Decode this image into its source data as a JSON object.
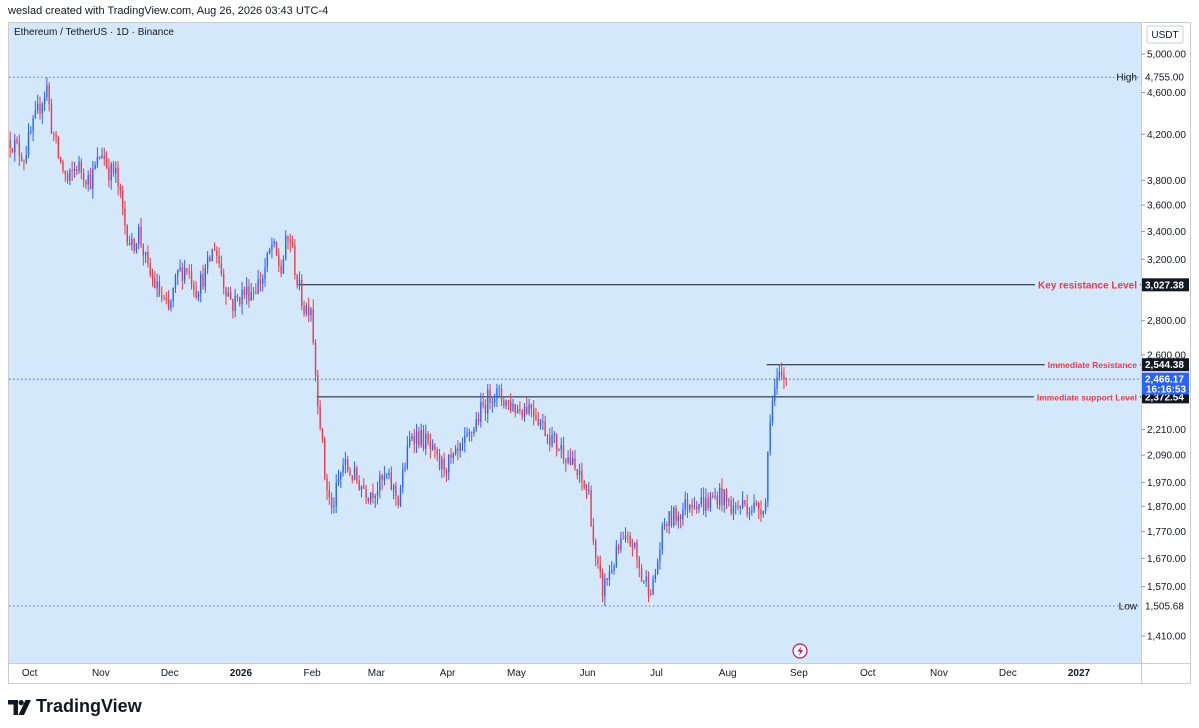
{
  "header": {
    "credit": "weslad created with TradingView.com, Aug 26, 2026 03:43 UTC-4"
  },
  "legend": {
    "symbol": "Ethereum / TetherUS · 1D · Binance"
  },
  "currency": "USDT",
  "footer": {
    "brand": "TradingView"
  },
  "colors": {
    "background": "#d4e8fb",
    "up": "#2962ff",
    "down": "#f23645",
    "annotation": "#f23645",
    "price_box": "#2962ff"
  },
  "chart_data": {
    "type": "candlestick",
    "title": "",
    "xlabel": "",
    "ylabel": "",
    "y_scale": "log",
    "ylim": [
      1330,
      5350
    ],
    "x_range": [
      "2025-09-22",
      "2027-01-28"
    ],
    "grid": false,
    "y_ticks": [
      "5,000.00",
      "4,600.00",
      "4,200.00",
      "3,800.00",
      "3,600.00",
      "3,400.00",
      "3,200.00",
      "2,800.00",
      "2,600.00",
      "2,210.00",
      "2,090.00",
      "1,970.00",
      "1,870.00",
      "1,770.00",
      "1,670.00",
      "1,570.00",
      "1,410.00"
    ],
    "x_ticks": [
      {
        "date": "2025-10-01",
        "label": "Oct"
      },
      {
        "date": "2025-11-01",
        "label": "Nov"
      },
      {
        "date": "2025-12-01",
        "label": "Dec"
      },
      {
        "date": "2026-01-01",
        "label": "2026"
      },
      {
        "date": "2026-02-01",
        "label": "Feb"
      },
      {
        "date": "2026-03-01",
        "label": "Mar"
      },
      {
        "date": "2026-04-01",
        "label": "Apr"
      },
      {
        "date": "2026-05-01",
        "label": "May"
      },
      {
        "date": "2026-06-01",
        "label": "Jun"
      },
      {
        "date": "2026-07-01",
        "label": "Jul"
      },
      {
        "date": "2026-08-01",
        "label": "Aug"
      },
      {
        "date": "2026-09-01",
        "label": "Sep"
      },
      {
        "date": "2026-10-01",
        "label": "Oct"
      },
      {
        "date": "2026-11-01",
        "label": "Nov"
      },
      {
        "date": "2026-12-01",
        "label": "Dec"
      },
      {
        "date": "2027-01-01",
        "label": "2027"
      }
    ],
    "start_date": "2025-09-22",
    "anchors": [
      [
        "2025-09-22",
        4150
      ],
      [
        "2025-09-28",
        4000
      ],
      [
        "2025-10-06",
        4540
      ],
      [
        "2025-10-08",
        4650
      ],
      [
        "2025-10-10",
        4280
      ],
      [
        "2025-10-13",
        4000
      ],
      [
        "2025-10-17",
        3780
      ],
      [
        "2025-10-21",
        3930
      ],
      [
        "2025-10-27",
        3800
      ],
      [
        "2025-11-01",
        4050
      ],
      [
        "2025-11-04",
        3880
      ],
      [
        "2025-11-07",
        3850
      ],
      [
        "2025-11-11",
        3450
      ],
      [
        "2025-11-14",
        3280
      ],
      [
        "2025-11-17",
        3400
      ],
      [
        "2025-11-21",
        3120
      ],
      [
        "2025-11-25",
        3000
      ],
      [
        "2025-11-30",
        2850
      ],
      [
        "2025-12-04",
        3100
      ],
      [
        "2025-12-08",
        3150
      ],
      [
        "2025-12-12",
        3000
      ],
      [
        "2025-12-16",
        3100
      ],
      [
        "2025-12-20",
        3300
      ],
      [
        "2025-12-24",
        3050
      ],
      [
        "2025-12-28",
        2900
      ],
      [
        "2026-01-01",
        2970
      ],
      [
        "2026-01-06",
        3000
      ],
      [
        "2026-01-10",
        3080
      ],
      [
        "2026-01-14",
        3300
      ],
      [
        "2026-01-18",
        3120
      ],
      [
        "2026-01-20",
        3300
      ],
      [
        "2026-01-22",
        3340
      ],
      [
        "2026-01-25",
        3050
      ],
      [
        "2026-01-28",
        2880
      ],
      [
        "2026-01-31",
        2900
      ],
      [
        "2026-02-02",
        2500
      ],
      [
        "2026-02-04",
        2250
      ],
      [
        "2026-02-06",
        2000
      ],
      [
        "2026-02-09",
        1850
      ],
      [
        "2026-02-14",
        2050
      ],
      [
        "2026-02-20",
        1980
      ],
      [
        "2026-02-25",
        1930
      ],
      [
        "2026-03-01",
        1950
      ],
      [
        "2026-03-05",
        1990
      ],
      [
        "2026-03-10",
        1900
      ],
      [
        "2026-03-16",
        2200
      ],
      [
        "2026-03-22",
        2150
      ],
      [
        "2026-03-28",
        2040
      ],
      [
        "2026-04-03",
        2060
      ],
      [
        "2026-04-09",
        2150
      ],
      [
        "2026-04-15",
        2300
      ],
      [
        "2026-04-20",
        2400
      ],
      [
        "2026-04-25",
        2360
      ],
      [
        "2026-05-01",
        2310
      ],
      [
        "2026-05-07",
        2330
      ],
      [
        "2026-05-12",
        2230
      ],
      [
        "2026-05-17",
        2150
      ],
      [
        "2026-05-22",
        2100
      ],
      [
        "2026-05-27",
        2000
      ],
      [
        "2026-06-01",
        1920
      ],
      [
        "2026-06-04",
        1650
      ],
      [
        "2026-06-07",
        1560
      ],
      [
        "2026-06-10",
        1620
      ],
      [
        "2026-06-15",
        1720
      ],
      [
        "2026-06-20",
        1730
      ],
      [
        "2026-06-24",
        1600
      ],
      [
        "2026-06-29",
        1570
      ],
      [
        "2026-07-04",
        1800
      ],
      [
        "2026-07-10",
        1840
      ],
      [
        "2026-07-16",
        1900
      ],
      [
        "2026-07-22",
        1880
      ],
      [
        "2026-07-28",
        1920
      ],
      [
        "2026-08-03",
        1860
      ],
      [
        "2026-08-08",
        1880
      ],
      [
        "2026-08-13",
        1860
      ],
      [
        "2026-08-17",
        1890
      ],
      [
        "2026-08-19",
        2300
      ],
      [
        "2026-08-21",
        2400
      ],
      [
        "2026-08-23",
        2470
      ],
      [
        "2026-08-26",
        2466
      ]
    ],
    "levels": [
      {
        "name": "High",
        "value": 4755.0,
        "label": "4,755.00",
        "style": "dotted"
      },
      {
        "name": "Low",
        "value": 1505.68,
        "label": "1,505.68",
        "style": "dotted"
      },
      {
        "name": "Key resistance Level",
        "value": 3027.38,
        "label": "3,027.38",
        "start": "2026-01-26",
        "style": "solid"
      },
      {
        "name": "Immediate Resistance",
        "value": 2544.38,
        "label": "2,544.38",
        "start": "2026-08-18",
        "style": "solid"
      },
      {
        "name": "Immediate support Level",
        "value": 2372.54,
        "label": "2,372.54",
        "start": "2026-02-03",
        "style": "solid"
      }
    ],
    "last_price": {
      "value": 2466.17,
      "label": "2,466.17",
      "countdown": "16:16:53"
    }
  }
}
